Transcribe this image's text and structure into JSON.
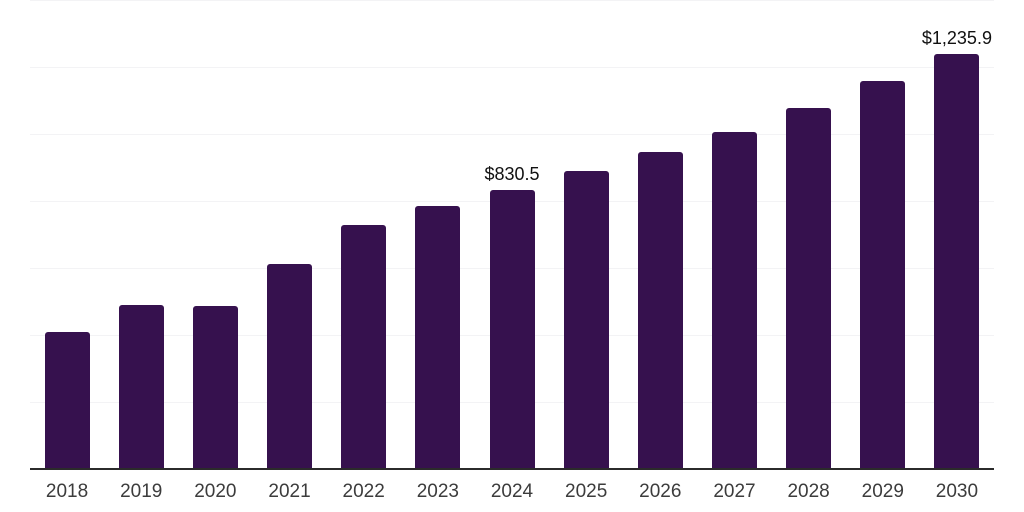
{
  "chart_data": {
    "type": "bar",
    "categories": [
      "2018",
      "2019",
      "2020",
      "2021",
      "2022",
      "2023",
      "2024",
      "2025",
      "2026",
      "2027",
      "2028",
      "2029",
      "2030"
    ],
    "values": [
      405,
      488,
      485,
      610,
      724,
      783,
      830.5,
      886,
      943,
      1004,
      1076,
      1154,
      1235.9
    ],
    "data_labels": {
      "2024": "$830.5",
      "2030": "$1,235.9"
    },
    "title": "",
    "xlabel": "",
    "ylabel": "",
    "ylim": [
      0,
      1400
    ],
    "gridline_step": 200,
    "grid": true,
    "legend": false,
    "y_axis_labels_visible": false,
    "colors": {
      "bar": "#36114e",
      "axis_line": "#2b2b2b",
      "gridline": "#f3f3f5",
      "value_label": "#111111",
      "tick_label": "#3c3c3c",
      "background": "#ffffff"
    }
  }
}
